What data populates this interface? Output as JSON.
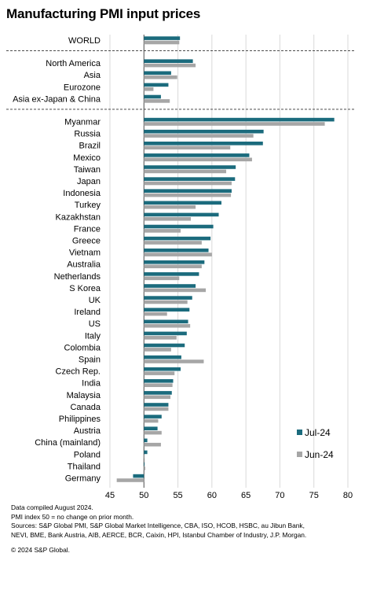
{
  "title": "Manufacturing PMI input prices",
  "colors": {
    "jul": "#1b6b7d",
    "jun": "#a6a6a6",
    "grid": "#d9d9d9",
    "divider": "#333333"
  },
  "chart_data": {
    "type": "bar",
    "orientation": "horizontal",
    "baseline": 50,
    "xlim": [
      45,
      80
    ],
    "xticks": [
      45,
      50,
      55,
      60,
      65,
      70,
      75,
      80
    ],
    "grid": true,
    "legend_position": "bottom-right",
    "series": [
      {
        "name": "Jul-24",
        "key": "jul"
      },
      {
        "name": "Jun-24",
        "key": "jun"
      }
    ],
    "groups": [
      {
        "separator_after": true,
        "items": [
          {
            "label": "WORLD",
            "jul": 55.3,
            "jun": 55.2
          }
        ]
      },
      {
        "separator_after": true,
        "items": [
          {
            "label": "North America",
            "jul": 57.2,
            "jun": 57.6
          },
          {
            "label": "Asia",
            "jul": 54.0,
            "jun": 54.9
          },
          {
            "label": "Eurozone",
            "jul": 53.6,
            "jun": 51.4
          },
          {
            "label": "Asia ex-Japan & China",
            "jul": 52.5,
            "jun": 53.8
          }
        ]
      },
      {
        "separator_after": false,
        "items": [
          {
            "label": "Myanmar",
            "jul": 78.0,
            "jun": 76.6
          },
          {
            "label": "Russia",
            "jul": 67.6,
            "jun": 66.1
          },
          {
            "label": "Brazil",
            "jul": 67.5,
            "jun": 62.7
          },
          {
            "label": "Mexico",
            "jul": 65.5,
            "jun": 65.9
          },
          {
            "label": "Taiwan",
            "jul": 63.5,
            "jun": 62.1
          },
          {
            "label": "Japan",
            "jul": 63.4,
            "jun": 62.9
          },
          {
            "label": "Indonesia",
            "jul": 62.9,
            "jun": 62.8
          },
          {
            "label": "Turkey",
            "jul": 61.4,
            "jun": 57.6
          },
          {
            "label": "Kazakhstan",
            "jul": 61.0,
            "jun": 56.9
          },
          {
            "label": "France",
            "jul": 60.2,
            "jun": 55.4
          },
          {
            "label": "Greece",
            "jul": 59.8,
            "jun": 58.5
          },
          {
            "label": "Vietnam",
            "jul": 59.5,
            "jun": 60.0
          },
          {
            "label": "Australia",
            "jul": 58.9,
            "jun": 58.5
          },
          {
            "label": "Netherlands",
            "jul": 58.1,
            "jun": 55.2
          },
          {
            "label": "S Korea",
            "jul": 57.6,
            "jun": 59.1
          },
          {
            "label": "UK",
            "jul": 57.1,
            "jun": 56.4
          },
          {
            "label": "Ireland",
            "jul": 56.7,
            "jun": 53.4
          },
          {
            "label": "US",
            "jul": 56.5,
            "jun": 56.8
          },
          {
            "label": "Italy",
            "jul": 56.3,
            "jun": 54.8
          },
          {
            "label": "Colombia",
            "jul": 56.0,
            "jun": 54.0
          },
          {
            "label": "Spain",
            "jul": 55.5,
            "jun": 58.8
          },
          {
            "label": "Czech Rep.",
            "jul": 55.4,
            "jun": 54.5
          },
          {
            "label": "India",
            "jul": 54.3,
            "jun": 54.2
          },
          {
            "label": "Malaysia",
            "jul": 54.1,
            "jun": 53.9
          },
          {
            "label": "Canada",
            "jul": 53.6,
            "jun": 53.6
          },
          {
            "label": "Philippines",
            "jul": 52.6,
            "jun": 52.1
          },
          {
            "label": "Austria",
            "jul": 52.0,
            "jun": 52.6
          },
          {
            "label": "China (mainland)",
            "jul": 50.5,
            "jun": 52.5
          },
          {
            "label": "Poland",
            "jul": 50.5,
            "jun": 50.0
          },
          {
            "label": "Thailand",
            "jul": 50.1,
            "jun": 50.2
          },
          {
            "label": "Germany",
            "jul": 48.4,
            "jun": 46.0
          }
        ]
      }
    ]
  },
  "notes": [
    "Data compiled August 2024.",
    "PMI index 50 = no change on prior month.",
    "Sources: S&P Global PMI, S&P Global Market Intelligence, CBA, ISO, HCOB, HSBC, au Jibun Bank,",
    "NEVI, BME, Bank Austria, AIB, AERCE, BCR, Caixin, HPI, Istanbul Chamber of Industry, J.P. Morgan."
  ],
  "copyright": "© 2024 S&P Global."
}
